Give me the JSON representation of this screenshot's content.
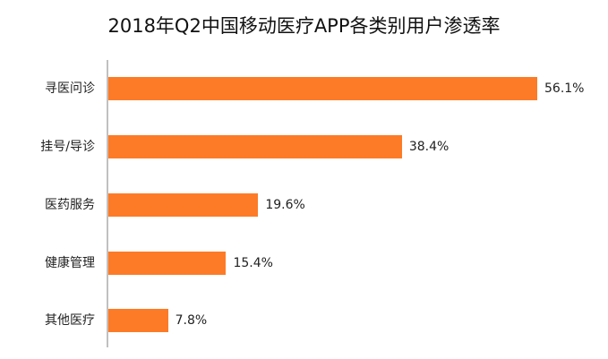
{
  "chart_data": {
    "type": "bar",
    "orientation": "horizontal",
    "title": "2018年Q2中国移动医疗APP各类别用户渗透率",
    "xlabel": "",
    "ylabel": "",
    "categories": [
      "寻医问诊",
      "挂号/导诊",
      "医药服务",
      "健康管理",
      "其他医疗"
    ],
    "values": [
      56.1,
      38.4,
      19.6,
      15.4,
      7.8
    ],
    "value_labels": [
      "56.1%",
      "38.4%",
      "19.6%",
      "15.4%",
      "7.8%"
    ],
    "unit": "%",
    "bar_color": "#fd7b26",
    "grid": false,
    "legend": null,
    "xlim": [
      0,
      60
    ]
  },
  "bars": [
    {
      "label": "寻医问诊",
      "value": 56.1,
      "text": "56.1%"
    },
    {
      "label": "挂号/导诊",
      "value": 38.4,
      "text": "38.4%"
    },
    {
      "label": "医药服务",
      "value": 19.6,
      "text": "19.6%"
    },
    {
      "label": "健康管理",
      "value": 15.4,
      "text": "15.4%"
    },
    {
      "label": "其他医疗",
      "value": 7.8,
      "text": "7.8%"
    }
  ]
}
